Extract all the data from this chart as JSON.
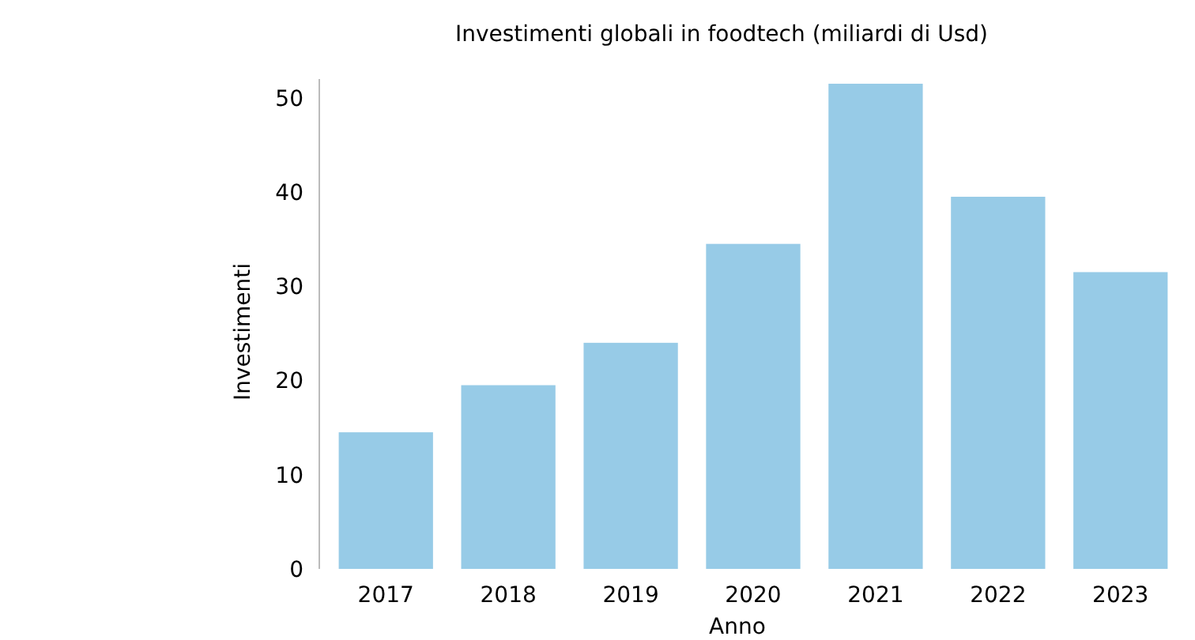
{
  "chart_data": {
    "type": "bar",
    "title": "Investimenti globali in foodtech (miliardi di Usd)",
    "xlabel": "Anno",
    "ylabel": "Investimenti",
    "categories": [
      "2017",
      "2018",
      "2019",
      "2020",
      "2021",
      "2022",
      "2023"
    ],
    "values": [
      14.5,
      19.5,
      24,
      34.5,
      51.5,
      39.5,
      31.5
    ],
    "color": "#97cbe7",
    "ylim": [
      0,
      52
    ],
    "yticks": [
      0,
      10,
      20,
      30,
      40,
      50
    ],
    "grid": false
  }
}
